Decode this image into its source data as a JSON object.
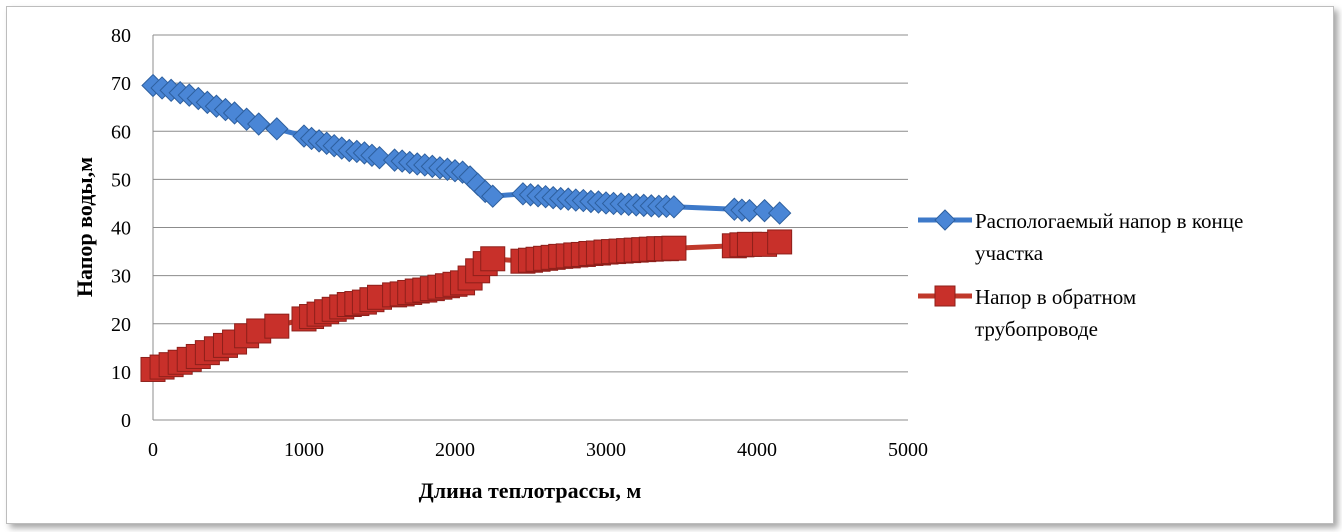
{
  "chart_data": {
    "type": "line",
    "xlabel": "Длина теплотрассы, м",
    "ylabel": "Напор воды,м",
    "xlim": [
      0,
      5000
    ],
    "ylim": [
      0,
      80
    ],
    "x_ticks": [
      0,
      1000,
      2000,
      3000,
      4000,
      5000
    ],
    "y_ticks": [
      0,
      10,
      20,
      30,
      40,
      50,
      60,
      70,
      80
    ],
    "grid": "horizontal",
    "legend_position": "right",
    "series": [
      {
        "name": "Распологаемый напор в конце участка",
        "color": "#3d79c9",
        "marker": "diamond",
        "x": [
          0,
          60,
          120,
          180,
          240,
          300,
          360,
          420,
          480,
          540,
          620,
          700,
          820,
          1000,
          1050,
          1100,
          1150,
          1200,
          1250,
          1300,
          1350,
          1400,
          1450,
          1500,
          1600,
          1650,
          1700,
          1750,
          1800,
          1850,
          1900,
          1950,
          2000,
          2050,
          2100,
          2150,
          2200,
          2250,
          2450,
          2500,
          2550,
          2600,
          2650,
          2700,
          2750,
          2800,
          2850,
          2900,
          2950,
          3000,
          3050,
          3100,
          3150,
          3200,
          3250,
          3300,
          3350,
          3400,
          3450,
          3850,
          3900,
          3950,
          4050,
          4150
        ],
        "y": [
          69.5,
          69,
          68.5,
          68,
          67.5,
          66.8,
          66,
          65.2,
          64.5,
          63.8,
          62.5,
          61.5,
          60.5,
          59,
          58.5,
          58,
          57.5,
          57,
          56.5,
          56,
          55.8,
          55.5,
          55,
          54.5,
          54,
          53.8,
          53.5,
          53.2,
          53,
          52.7,
          52.4,
          52.1,
          51.8,
          51.5,
          50.5,
          49,
          47.5,
          46.5,
          47,
          46.8,
          46.6,
          46.4,
          46.2,
          46,
          45.9,
          45.7,
          45.6,
          45.4,
          45.3,
          45.1,
          45,
          44.9,
          44.8,
          44.7,
          44.6,
          44.5,
          44.4,
          44.4,
          44.3,
          43.8,
          43.6,
          43.5,
          43.5,
          43
        ]
      },
      {
        "name": "Напор в обратном трубопроводе",
        "color": "#c0392b",
        "marker": "square",
        "x": [
          0,
          60,
          120,
          180,
          240,
          300,
          360,
          420,
          480,
          540,
          620,
          700,
          820,
          1000,
          1050,
          1100,
          1150,
          1200,
          1250,
          1300,
          1350,
          1400,
          1450,
          1500,
          1600,
          1650,
          1700,
          1750,
          1800,
          1850,
          1900,
          1950,
          2000,
          2050,
          2100,
          2150,
          2200,
          2250,
          2450,
          2500,
          2550,
          2600,
          2650,
          2700,
          2750,
          2800,
          2850,
          2900,
          2950,
          3000,
          3050,
          3100,
          3150,
          3200,
          3250,
          3300,
          3350,
          3400,
          3450,
          3850,
          3900,
          3950,
          4050,
          4150
        ],
        "y": [
          10.5,
          11,
          11.5,
          12,
          12.6,
          13.2,
          14,
          14.8,
          15.5,
          16.2,
          17.5,
          18.5,
          19.5,
          21,
          21.5,
          22,
          22.5,
          23,
          23.5,
          24,
          24.2,
          24.5,
          25,
          25.5,
          26,
          26.2,
          26.5,
          26.8,
          27,
          27.3,
          27.6,
          27.9,
          28.2,
          28.5,
          29.5,
          31,
          32.5,
          33.5,
          33,
          33.2,
          33.4,
          33.6,
          33.8,
          34,
          34.1,
          34.3,
          34.4,
          34.6,
          34.7,
          34.9,
          35,
          35.1,
          35.2,
          35.3,
          35.4,
          35.5,
          35.6,
          35.6,
          35.7,
          36.2,
          36.4,
          36.5,
          36.5,
          37
        ]
      }
    ]
  }
}
